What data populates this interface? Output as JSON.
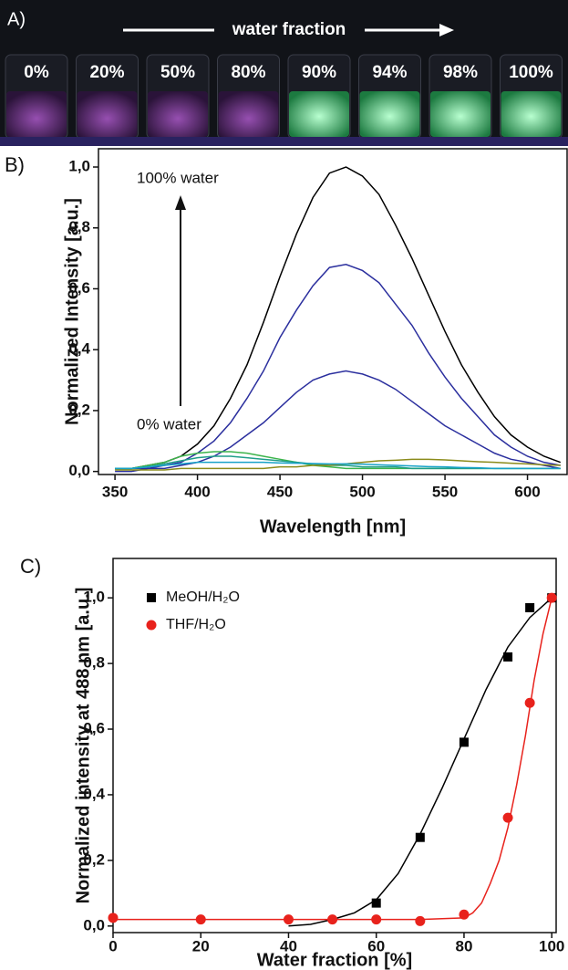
{
  "panel_a": {
    "label": "A)",
    "caption": "water fraction",
    "samples": [
      "0%",
      "20%",
      "50%",
      "80%",
      "90%",
      "94%",
      "98%",
      "100%"
    ]
  },
  "chart_data": [
    {
      "type": "line",
      "panel_label": "B)",
      "xlabel": "Wavelength [nm]",
      "ylabel": "Normalized Intensity [a.u.]",
      "annotations": [
        "100% water",
        "0% water"
      ],
      "xlim": [
        340,
        624
      ],
      "xticks": [
        350,
        400,
        450,
        500,
        550,
        600
      ],
      "ylim": [
        -0.01,
        1.06
      ],
      "yticks": [
        {
          "value": 0,
          "label": "0,0"
        },
        {
          "value": 0.2,
          "label": "0,2"
        },
        {
          "value": 0.4,
          "label": "0,4"
        },
        {
          "value": 0.6,
          "label": "0,6"
        },
        {
          "value": 0.8,
          "label": "0,8"
        },
        {
          "value": 1.0,
          "label": "1,0"
        }
      ],
      "x": [
        350,
        360,
        370,
        380,
        390,
        400,
        410,
        420,
        430,
        440,
        450,
        460,
        470,
        480,
        490,
        500,
        510,
        520,
        530,
        540,
        550,
        560,
        570,
        580,
        590,
        600,
        610,
        620
      ],
      "series": [
        {
          "color": "#000000",
          "values": [
            0.01,
            0.01,
            0.02,
            0.03,
            0.05,
            0.09,
            0.15,
            0.24,
            0.35,
            0.49,
            0.64,
            0.78,
            0.9,
            0.98,
            1.0,
            0.97,
            0.91,
            0.81,
            0.7,
            0.58,
            0.46,
            0.35,
            0.26,
            0.18,
            0.12,
            0.08,
            0.05,
            0.03
          ]
        },
        {
          "color": "#2b2f9e",
          "values": [
            0.01,
            0.01,
            0.01,
            0.02,
            0.03,
            0.06,
            0.1,
            0.16,
            0.24,
            0.33,
            0.44,
            0.53,
            0.61,
            0.67,
            0.68,
            0.66,
            0.62,
            0.55,
            0.48,
            0.39,
            0.31,
            0.24,
            0.18,
            0.12,
            0.08,
            0.05,
            0.03,
            0.02
          ]
        },
        {
          "color": "#2b2f9e",
          "values": [
            0.0,
            0.0,
            0.01,
            0.01,
            0.02,
            0.03,
            0.05,
            0.08,
            0.12,
            0.16,
            0.21,
            0.26,
            0.3,
            0.32,
            0.33,
            0.32,
            0.3,
            0.27,
            0.23,
            0.19,
            0.15,
            0.12,
            0.09,
            0.06,
            0.04,
            0.03,
            0.02,
            0.01
          ]
        },
        {
          "color": "#3cb44b",
          "values": [
            0.01,
            0.01,
            0.02,
            0.03,
            0.05,
            0.06,
            0.065,
            0.065,
            0.06,
            0.05,
            0.04,
            0.03,
            0.02,
            0.015,
            0.01,
            0.01,
            0.01,
            0.01,
            0.01,
            0.01,
            0.01,
            0.01,
            0.01,
            0.01,
            0.01,
            0.01,
            0.01,
            0.01
          ]
        },
        {
          "color": "#1f9e89",
          "values": [
            0.01,
            0.01,
            0.015,
            0.025,
            0.035,
            0.045,
            0.05,
            0.05,
            0.045,
            0.04,
            0.035,
            0.03,
            0.025,
            0.02,
            0.02,
            0.015,
            0.015,
            0.015,
            0.01,
            0.01,
            0.01,
            0.01,
            0.01,
            0.01,
            0.01,
            0.01,
            0.01,
            0.01
          ]
        },
        {
          "color": "#8b8b1a",
          "values": [
            0.005,
            0.005,
            0.005,
            0.005,
            0.01,
            0.01,
            0.01,
            0.01,
            0.01,
            0.01,
            0.015,
            0.015,
            0.02,
            0.02,
            0.025,
            0.03,
            0.035,
            0.037,
            0.04,
            0.04,
            0.038,
            0.035,
            0.032,
            0.03,
            0.027,
            0.025,
            0.022,
            0.02
          ]
        },
        {
          "color": "#17a2c8",
          "values": [
            0.01,
            0.01,
            0.015,
            0.02,
            0.025,
            0.03,
            0.03,
            0.03,
            0.03,
            0.03,
            0.028,
            0.027,
            0.026,
            0.025,
            0.025,
            0.024,
            0.022,
            0.02,
            0.018,
            0.016,
            0.015,
            0.013,
            0.012,
            0.01,
            0.01,
            0.01,
            0.01,
            0.01
          ]
        }
      ]
    },
    {
      "type": "scatter",
      "panel_label": "C)",
      "xlabel": "Water fraction [%]",
      "ylabel": "Normalized intensity at 488 nm [a.u.]",
      "xlim": [
        0,
        101
      ],
      "xticks": [
        0,
        20,
        40,
        60,
        80,
        100
      ],
      "ylim": [
        -0.02,
        1.12
      ],
      "yticks": [
        {
          "value": 0,
          "label": "0,0"
        },
        {
          "value": 0.2,
          "label": "0,2"
        },
        {
          "value": 0.4,
          "label": "0,4"
        },
        {
          "value": 0.6,
          "label": "0,6"
        },
        {
          "value": 0.8,
          "label": "0,8"
        },
        {
          "value": 1.0,
          "label": "1,0"
        }
      ],
      "series": [
        {
          "name": "MeOH/H₂O",
          "color": "#000000",
          "marker": "square",
          "x": [
            60,
            70,
            80,
            90,
            95,
            100
          ],
          "values": [
            0.07,
            0.27,
            0.56,
            0.82,
            0.97,
            1.0
          ]
        },
        {
          "name": "THF/H₂O",
          "color": "#e8221c",
          "marker": "circle",
          "x": [
            0,
            20,
            40,
            50,
            60,
            70,
            80,
            90,
            95,
            100
          ],
          "values": [
            0.025,
            0.02,
            0.02,
            0.02,
            0.02,
            0.015,
            0.035,
            0.33,
            0.68,
            1.0
          ]
        }
      ],
      "fits": [
        {
          "color": "#000000",
          "x": [
            40,
            45,
            50,
            55,
            60,
            65,
            70,
            75,
            80,
            85,
            90,
            95,
            100
          ],
          "values": [
            0.0,
            0.005,
            0.02,
            0.04,
            0.08,
            0.16,
            0.28,
            0.42,
            0.57,
            0.72,
            0.85,
            0.94,
            1.0
          ]
        },
        {
          "color": "#e8221c",
          "x": [
            0,
            10,
            20,
            30,
            40,
            50,
            60,
            70,
            80,
            82,
            84,
            86,
            88,
            90,
            92,
            94,
            96,
            98,
            100
          ],
          "values": [
            0.02,
            0.02,
            0.02,
            0.02,
            0.02,
            0.02,
            0.02,
            0.02,
            0.025,
            0.04,
            0.07,
            0.13,
            0.2,
            0.3,
            0.43,
            0.58,
            0.75,
            0.89,
            1.0
          ]
        }
      ]
    }
  ]
}
